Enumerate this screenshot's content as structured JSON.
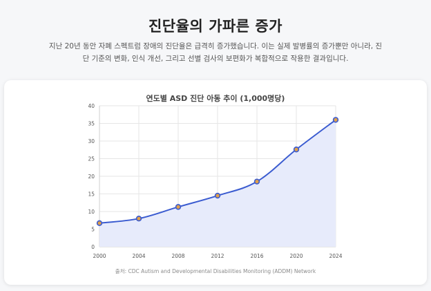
{
  "header": {
    "title": "진단율의 가파른 증가",
    "intro": "지난 20년 동안 자폐 스펙트럼 장애의 진단율은 급격히 증가했습니다. 이는 실제 발병률의 증가뿐만 아니라, 진단 기준의 변화, 인식 개선, 그리고 선별 검사의 보편화가 복합적으로 작용한 결과입니다."
  },
  "chart_data": {
    "type": "area",
    "title": "연도별 ASD 진단 아동 추이 (1,000명당)",
    "x": [
      2000,
      2004,
      2008,
      2012,
      2016,
      2020,
      2024
    ],
    "series": [
      {
        "values": [
          6.7,
          8.0,
          11.3,
          14.5,
          18.5,
          27.6,
          36.0
        ]
      }
    ],
    "xlim": [
      2000,
      2024
    ],
    "ylim": [
      0,
      40
    ],
    "yticks": [
      0,
      5,
      10,
      15,
      20,
      25,
      30,
      35,
      40
    ],
    "xticks": [
      2000,
      2004,
      2008,
      2012,
      2016,
      2020,
      2024
    ],
    "grid": true,
    "line_color": "#3a5bd0",
    "fill_color": "#e7ebfb",
    "marker_color": "#e0a04a",
    "source": "출처: CDC Autism and Developmental Disabilities Monitoring (ADDM) Network"
  }
}
